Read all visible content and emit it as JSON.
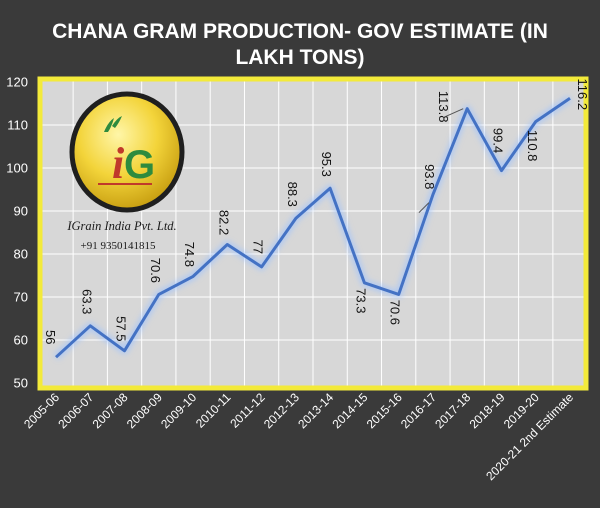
{
  "title_lines": [
    "CHANA GRAM PRODUCTION- GOV ESTIMATE (IN",
    "LAKH TONS)"
  ],
  "logo": {
    "brand": "IGrain India Pvt. Ltd.",
    "phone": "+91 9350141815"
  },
  "colors": {
    "background": "#3a3a3a",
    "plot_area": "#d7d7d7",
    "frame": "#f3ea3a",
    "line": "#4472c4",
    "grid": "#ffffff"
  },
  "chart_data": {
    "type": "line",
    "title": "CHANA GRAM PRODUCTION- GOV ESTIMATE (IN LAKH TONS)",
    "xlabel": "",
    "ylabel": "",
    "ylim": [
      50,
      120
    ],
    "yticks": [
      50,
      60,
      70,
      80,
      90,
      100,
      110,
      120
    ],
    "grid": true,
    "legend": "none",
    "categories": [
      "2005-06",
      "2006-07",
      "2007-08",
      "2008-09",
      "2009-10",
      "2010-11",
      "2011-12",
      "2012-13",
      "2013-14",
      "2014-15",
      "2015-16",
      "2016-17",
      "2017-18",
      "2018-19",
      "2019-20",
      "2020-21 2nd Estimate"
    ],
    "series": [
      {
        "values": [
          56,
          63.3,
          57.5,
          70.6,
          74.8,
          82.2,
          77,
          88.3,
          95.3,
          73.3,
          70.6,
          93.8,
          113.8,
          99.4,
          110.8,
          116.2
        ],
        "data_labels": [
          "56",
          "63.3",
          "57.5",
          "70.6",
          "74.8",
          "82.2",
          "77",
          "88.3",
          "95.3",
          "73.3",
          "70.6",
          "93.8",
          "113.8",
          "99.4",
          "110.8",
          "116.2"
        ]
      }
    ]
  }
}
